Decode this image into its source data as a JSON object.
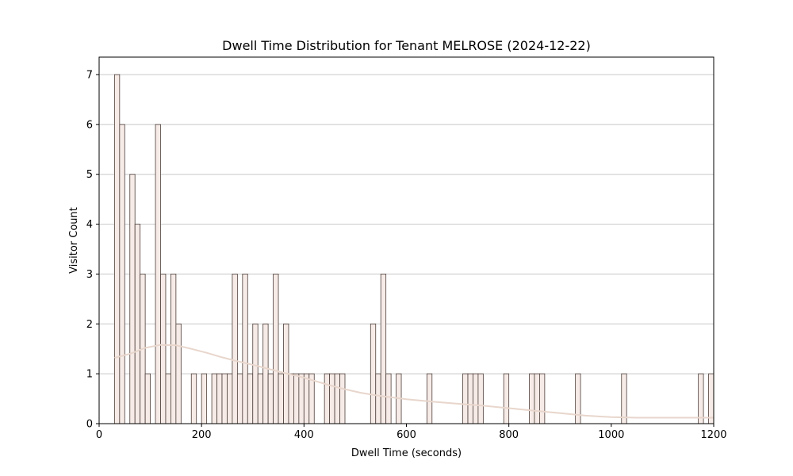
{
  "chart_data": {
    "type": "bar",
    "title": "Dwell Time Distribution for Tenant MELROSE (2024-12-22)",
    "xlabel": "Dwell Time (seconds)",
    "ylabel": "Visitor Count",
    "xlim": [
      0,
      1200
    ],
    "ylim": [
      0,
      7.35
    ],
    "x_ticks": [
      0,
      200,
      400,
      600,
      800,
      1000,
      1200
    ],
    "y_ticks": [
      0,
      1,
      2,
      3,
      4,
      5,
      6,
      7
    ],
    "grid": "y",
    "bar_fill": "#f6ebe7",
    "bar_edge": "#4d3f3a",
    "curve_color": "#e8d6cc",
    "bin_width": 10,
    "bins": [
      {
        "x": 30,
        "count": 7
      },
      {
        "x": 40,
        "count": 6
      },
      {
        "x": 60,
        "count": 5
      },
      {
        "x": 70,
        "count": 4
      },
      {
        "x": 80,
        "count": 3
      },
      {
        "x": 90,
        "count": 1
      },
      {
        "x": 110,
        "count": 6
      },
      {
        "x": 120,
        "count": 3
      },
      {
        "x": 130,
        "count": 1
      },
      {
        "x": 140,
        "count": 3
      },
      {
        "x": 150,
        "count": 2
      },
      {
        "x": 180,
        "count": 1
      },
      {
        "x": 200,
        "count": 1
      },
      {
        "x": 220,
        "count": 1
      },
      {
        "x": 230,
        "count": 1
      },
      {
        "x": 240,
        "count": 1
      },
      {
        "x": 250,
        "count": 1
      },
      {
        "x": 260,
        "count": 3
      },
      {
        "x": 270,
        "count": 1
      },
      {
        "x": 280,
        "count": 3
      },
      {
        "x": 290,
        "count": 1
      },
      {
        "x": 300,
        "count": 2
      },
      {
        "x": 310,
        "count": 1
      },
      {
        "x": 320,
        "count": 2
      },
      {
        "x": 330,
        "count": 1
      },
      {
        "x": 340,
        "count": 3
      },
      {
        "x": 350,
        "count": 1
      },
      {
        "x": 360,
        "count": 2
      },
      {
        "x": 370,
        "count": 1
      },
      {
        "x": 380,
        "count": 1
      },
      {
        "x": 390,
        "count": 1
      },
      {
        "x": 400,
        "count": 1
      },
      {
        "x": 410,
        "count": 1
      },
      {
        "x": 440,
        "count": 1
      },
      {
        "x": 450,
        "count": 1
      },
      {
        "x": 460,
        "count": 1
      },
      {
        "x": 470,
        "count": 1
      },
      {
        "x": 530,
        "count": 2
      },
      {
        "x": 540,
        "count": 1
      },
      {
        "x": 550,
        "count": 3
      },
      {
        "x": 560,
        "count": 1
      },
      {
        "x": 580,
        "count": 1
      },
      {
        "x": 640,
        "count": 1
      },
      {
        "x": 710,
        "count": 1
      },
      {
        "x": 720,
        "count": 1
      },
      {
        "x": 730,
        "count": 1
      },
      {
        "x": 740,
        "count": 1
      },
      {
        "x": 790,
        "count": 1
      },
      {
        "x": 840,
        "count": 1
      },
      {
        "x": 850,
        "count": 1
      },
      {
        "x": 860,
        "count": 1
      },
      {
        "x": 930,
        "count": 1
      },
      {
        "x": 1020,
        "count": 1
      },
      {
        "x": 1170,
        "count": 1
      },
      {
        "x": 1190,
        "count": 1
      }
    ],
    "density_curve": [
      {
        "x": 30,
        "y": 1.32
      },
      {
        "x": 60,
        "y": 1.4
      },
      {
        "x": 90,
        "y": 1.52
      },
      {
        "x": 120,
        "y": 1.58
      },
      {
        "x": 150,
        "y": 1.57
      },
      {
        "x": 180,
        "y": 1.5
      },
      {
        "x": 210,
        "y": 1.42
      },
      {
        "x": 240,
        "y": 1.33
      },
      {
        "x": 270,
        "y": 1.25
      },
      {
        "x": 300,
        "y": 1.18
      },
      {
        "x": 330,
        "y": 1.1
      },
      {
        "x": 360,
        "y": 1.02
      },
      {
        "x": 390,
        "y": 0.95
      },
      {
        "x": 420,
        "y": 0.86
      },
      {
        "x": 450,
        "y": 0.77
      },
      {
        "x": 480,
        "y": 0.69
      },
      {
        "x": 510,
        "y": 0.62
      },
      {
        "x": 540,
        "y": 0.57
      },
      {
        "x": 570,
        "y": 0.53
      },
      {
        "x": 600,
        "y": 0.49
      },
      {
        "x": 650,
        "y": 0.44
      },
      {
        "x": 700,
        "y": 0.4
      },
      {
        "x": 750,
        "y": 0.36
      },
      {
        "x": 800,
        "y": 0.31
      },
      {
        "x": 850,
        "y": 0.26
      },
      {
        "x": 900,
        "y": 0.21
      },
      {
        "x": 950,
        "y": 0.16
      },
      {
        "x": 1000,
        "y": 0.13
      },
      {
        "x": 1050,
        "y": 0.12
      },
      {
        "x": 1100,
        "y": 0.12
      },
      {
        "x": 1150,
        "y": 0.12
      },
      {
        "x": 1200,
        "y": 0.12
      }
    ]
  }
}
